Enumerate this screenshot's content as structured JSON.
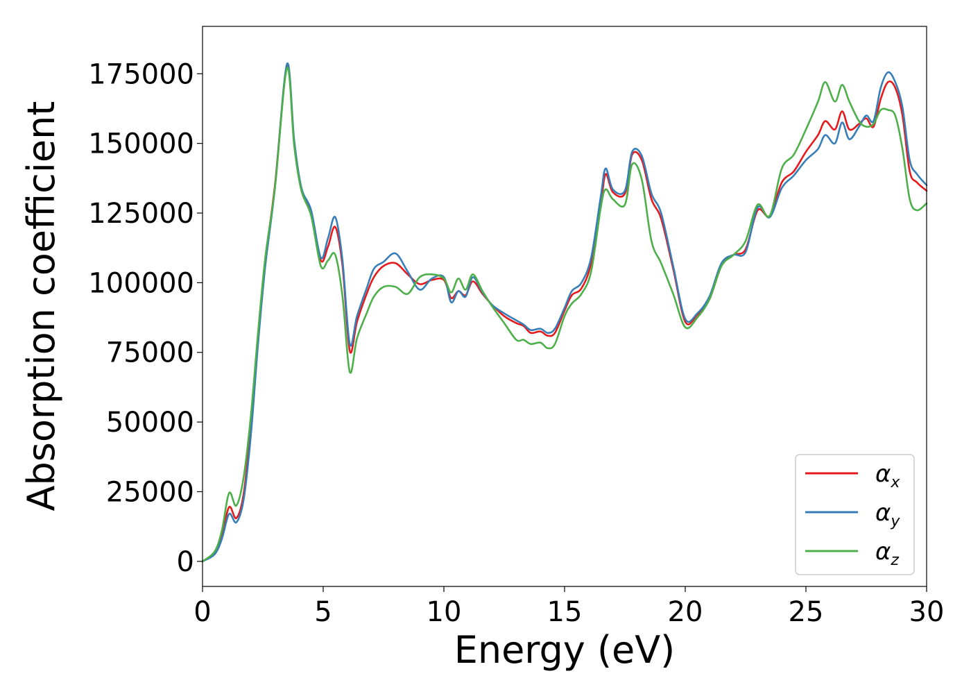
{
  "chart_data": {
    "type": "line",
    "xlabel": "Energy (eV)",
    "ylabel": "Absorption coefficient",
    "xlim": [
      0,
      30
    ],
    "ylim": [
      -9000,
      192000
    ],
    "xticks": [
      0,
      5,
      10,
      15,
      20,
      25,
      30
    ],
    "xtick_labels": [
      "0",
      "5",
      "10",
      "15",
      "20",
      "25",
      "30"
    ],
    "yticks": [
      0,
      25000,
      50000,
      75000,
      100000,
      125000,
      150000,
      175000
    ],
    "ytick_labels": [
      "0",
      "25000",
      "50000",
      "75000",
      "100000",
      "125000",
      "150000",
      "175000"
    ],
    "grid": false,
    "legend_position": "bottom-right",
    "legend": [
      {
        "symbol": "α",
        "subscript": "x",
        "color": "#e41a1c"
      },
      {
        "symbol": "α",
        "subscript": "y",
        "color": "#377eb8"
      },
      {
        "symbol": "α",
        "subscript": "z",
        "color": "#4daf4a"
      }
    ],
    "series": [
      {
        "name": "αx",
        "color": "#e41a1c",
        "x": [
          0,
          0.5,
          0.8,
          1.1,
          1.4,
          1.7,
          2.0,
          2.3,
          2.6,
          3.0,
          3.5,
          3.8,
          4.1,
          4.5,
          4.9,
          5.2,
          5.5,
          5.8,
          6.1,
          6.4,
          6.8,
          7.1,
          7.5,
          8.0,
          8.5,
          9.0,
          9.5,
          10.0,
          10.3,
          10.6,
          10.9,
          11.2,
          11.6,
          12.0,
          12.5,
          13.0,
          13.3,
          13.6,
          14.0,
          14.3,
          14.6,
          15.0,
          15.3,
          15.7,
          16.1,
          16.5,
          16.7,
          17.0,
          17.5,
          17.8,
          18.2,
          18.6,
          19.0,
          19.5,
          20.0,
          20.5,
          21.0,
          21.5,
          22.0,
          22.5,
          23.0,
          23.5,
          24.0,
          24.5,
          25.0,
          25.5,
          25.8,
          26.2,
          26.5,
          26.8,
          27.2,
          27.5,
          27.8,
          28.1,
          28.4,
          28.7,
          29.0,
          29.3,
          29.6,
          30.0
        ],
        "y": [
          0,
          3000,
          9000,
          19500,
          15500,
          24000,
          48000,
          80000,
          108000,
          135000,
          177500,
          150000,
          133000,
          125000,
          108000,
          113000,
          120000,
          106000,
          75500,
          86000,
          96000,
          102000,
          106000,
          107000,
          103000,
          99500,
          101000,
          101000,
          94500,
          97000,
          95500,
          100500,
          96000,
          92000,
          88000,
          85500,
          84500,
          82000,
          82500,
          81000,
          82000,
          90000,
          95500,
          98000,
          107000,
          128000,
          139000,
          132500,
          132000,
          146000,
          144000,
          130000,
          123000,
          105000,
          86000,
          88500,
          94000,
          106000,
          110000,
          112000,
          126000,
          124000,
          136000,
          140000,
          147000,
          153000,
          158000,
          155000,
          161500,
          155000,
          157000,
          159000,
          156000,
          166000,
          172000,
          170000,
          160000,
          140000,
          136000,
          133000
        ]
      },
      {
        "name": "αy",
        "color": "#377eb8",
        "x": [
          0,
          0.5,
          0.8,
          1.1,
          1.4,
          1.7,
          2.0,
          2.3,
          2.6,
          3.0,
          3.5,
          3.8,
          4.1,
          4.5,
          4.9,
          5.2,
          5.5,
          5.8,
          6.1,
          6.4,
          6.8,
          7.1,
          7.5,
          8.0,
          8.5,
          9.0,
          9.5,
          10.0,
          10.3,
          10.6,
          10.9,
          11.2,
          11.6,
          12.0,
          12.5,
          13.0,
          13.3,
          13.6,
          14.0,
          14.3,
          14.6,
          15.0,
          15.3,
          15.7,
          16.1,
          16.5,
          16.7,
          17.0,
          17.5,
          17.8,
          18.2,
          18.6,
          19.0,
          19.5,
          20.0,
          20.5,
          21.0,
          21.5,
          22.0,
          22.5,
          23.0,
          23.5,
          24.0,
          24.5,
          25.0,
          25.5,
          25.8,
          26.2,
          26.5,
          26.8,
          27.2,
          27.5,
          27.8,
          28.1,
          28.4,
          28.7,
          29.0,
          29.3,
          29.6,
          30.0
        ],
        "y": [
          0,
          2500,
          8000,
          17000,
          14000,
          22000,
          45000,
          78000,
          106000,
          134000,
          178500,
          151000,
          134000,
          126000,
          109000,
          116000,
          123500,
          108000,
          78000,
          88000,
          98000,
          105000,
          107500,
          110500,
          104000,
          97500,
          101500,
          102000,
          93000,
          97000,
          95000,
          102000,
          96500,
          92000,
          89000,
          86500,
          85000,
          83000,
          83500,
          82000,
          83500,
          91000,
          97000,
          100000,
          109000,
          131000,
          141000,
          133500,
          133000,
          147000,
          145500,
          132000,
          125000,
          106000,
          87000,
          89000,
          95000,
          107000,
          110000,
          111000,
          127000,
          123500,
          134000,
          138500,
          144000,
          148000,
          153000,
          150000,
          157500,
          151500,
          156000,
          160000,
          158000,
          170000,
          175500,
          172000,
          163000,
          144000,
          139000,
          135000
        ]
      },
      {
        "name": "αz",
        "color": "#4daf4a",
        "x": [
          0,
          0.5,
          0.8,
          1.1,
          1.4,
          1.7,
          2.0,
          2.3,
          2.6,
          3.0,
          3.5,
          3.8,
          4.1,
          4.5,
          4.9,
          5.2,
          5.5,
          5.8,
          6.1,
          6.4,
          6.8,
          7.1,
          7.5,
          8.0,
          8.5,
          9.0,
          9.5,
          10.0,
          10.3,
          10.6,
          10.9,
          11.2,
          11.6,
          12.0,
          12.5,
          13.0,
          13.3,
          13.6,
          14.0,
          14.3,
          14.6,
          15.0,
          15.3,
          15.7,
          16.1,
          16.5,
          16.7,
          17.0,
          17.5,
          17.8,
          18.2,
          18.6,
          19.0,
          19.5,
          20.0,
          20.5,
          21.0,
          21.5,
          22.0,
          22.5,
          23.0,
          23.5,
          24.0,
          24.5,
          25.0,
          25.5,
          25.8,
          26.2,
          26.5,
          26.8,
          27.2,
          27.5,
          27.8,
          28.1,
          28.4,
          28.7,
          29.0,
          29.3,
          29.6,
          30.0
        ],
        "y": [
          0,
          3500,
          11000,
          24500,
          20000,
          30000,
          52000,
          82000,
          109000,
          134000,
          177000,
          149000,
          133000,
          124000,
          106000,
          108000,
          110000,
          95000,
          68000,
          80000,
          89000,
          95000,
          98500,
          98500,
          96000,
          102000,
          103000,
          101500,
          96500,
          101500,
          97500,
          103000,
          97000,
          91500,
          85500,
          79500,
          79500,
          78000,
          78500,
          76500,
          78000,
          88000,
          92500,
          96000,
          104000,
          127000,
          133500,
          130000,
          128000,
          142500,
          137000,
          115000,
          107000,
          96000,
          84000,
          87500,
          94000,
          106000,
          110000,
          115000,
          128000,
          124000,
          141000,
          146000,
          155000,
          165000,
          172000,
          165000,
          171000,
          165000,
          158000,
          156000,
          157000,
          162000,
          162000,
          160000,
          148000,
          130000,
          126000,
          128500
        ]
      }
    ]
  }
}
